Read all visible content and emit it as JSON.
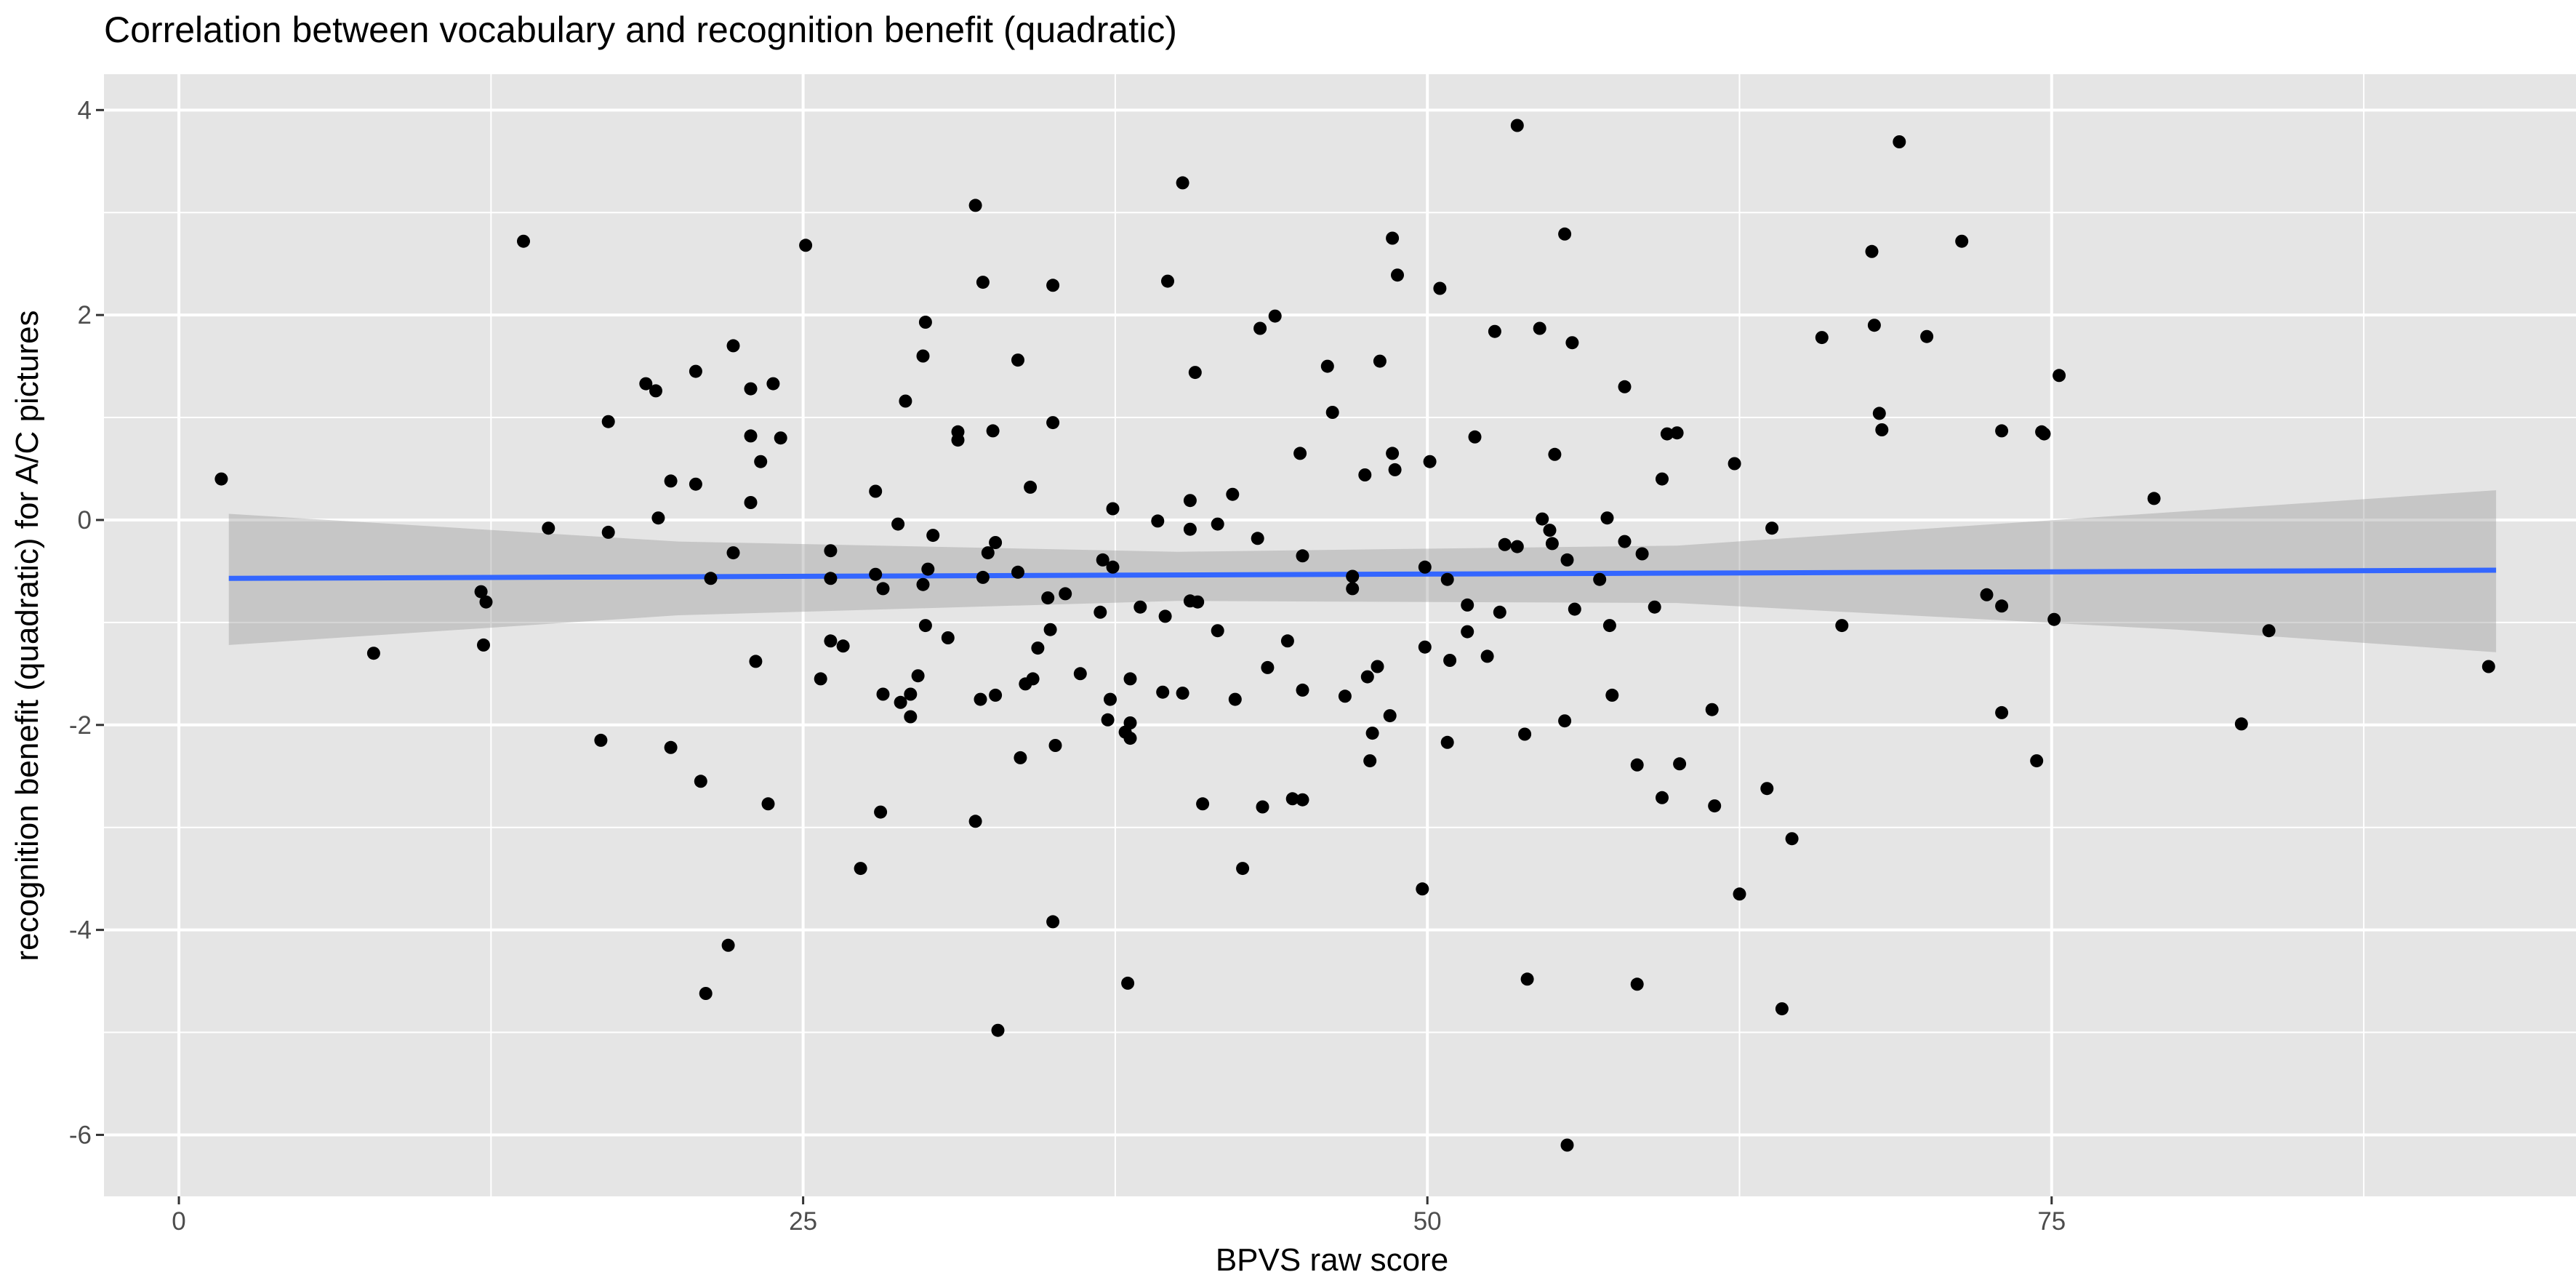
{
  "chart_data": {
    "type": "scatter",
    "title": "Correlation between vocabulary and recognition benefit (quadratic)",
    "xlabel": "BPVS raw score",
    "ylabel": "recognition benefit (quadratic) for A/C pictures",
    "xlim": [
      -3,
      96
    ],
    "ylim": [
      -6.6,
      4.35
    ],
    "x_ticks": [
      0,
      25,
      50,
      75
    ],
    "y_ticks": [
      -6,
      -4,
      -2,
      0,
      2,
      4
    ],
    "grid": true,
    "panel_background": "#e5e5e5",
    "grid_color": "#ffffff",
    "point_color": "#000000",
    "fit": {
      "method": "linear",
      "x_range": [
        2,
        92.8
      ],
      "line": [
        [
          2,
          -0.57
        ],
        [
          92.8,
          -0.49
        ]
      ],
      "ci_lower": [
        [
          2,
          -1.22
        ],
        [
          20,
          -0.93
        ],
        [
          40,
          -0.79
        ],
        [
          60,
          -0.81
        ],
        [
          80,
          -1.07
        ],
        [
          92.8,
          -1.29
        ]
      ],
      "ci_upper": [
        [
          2,
          0.06
        ],
        [
          20,
          -0.21
        ],
        [
          40,
          -0.31
        ],
        [
          60,
          -0.25
        ],
        [
          80,
          0.08
        ],
        [
          92.8,
          0.29
        ]
      ],
      "line_color": "#3366ff",
      "band_color": "#999999"
    },
    "points": [
      [
        1.7,
        0.4
      ],
      [
        7.8,
        -1.3
      ],
      [
        12.1,
        -0.7
      ],
      [
        12.3,
        -0.8
      ],
      [
        12.2,
        -1.22
      ],
      [
        13.8,
        2.72
      ],
      [
        14.8,
        -0.08
      ],
      [
        16.9,
        -2.15
      ],
      [
        17.2,
        0.96
      ],
      [
        17.2,
        -0.12
      ],
      [
        18.7,
        1.33
      ],
      [
        19.1,
        1.26
      ],
      [
        19.2,
        0.02
      ],
      [
        19.7,
        0.38
      ],
      [
        19.7,
        -2.22
      ],
      [
        20.7,
        1.45
      ],
      [
        20.7,
        0.35
      ],
      [
        20.9,
        -2.55
      ],
      [
        21.1,
        -4.62
      ],
      [
        21.3,
        -0.57
      ],
      [
        22.0,
        -4.15
      ],
      [
        22.2,
        1.7
      ],
      [
        22.2,
        -0.32
      ],
      [
        22.9,
        1.28
      ],
      [
        22.9,
        0.82
      ],
      [
        22.9,
        0.17
      ],
      [
        23.1,
        -1.38
      ],
      [
        23.3,
        0.57
      ],
      [
        23.6,
        -2.77
      ],
      [
        23.8,
        1.33
      ],
      [
        24.1,
        0.8
      ],
      [
        25.1,
        2.68
      ],
      [
        25.7,
        -1.55
      ],
      [
        26.1,
        -0.3
      ],
      [
        26.1,
        -0.57
      ],
      [
        26.1,
        -1.18
      ],
      [
        26.6,
        -1.23
      ],
      [
        27.3,
        -3.4
      ],
      [
        27.9,
        0.28
      ],
      [
        27.9,
        -0.53
      ],
      [
        28.1,
        -2.85
      ],
      [
        28.2,
        -1.7
      ],
      [
        28.2,
        -0.67
      ],
      [
        28.8,
        -0.04
      ],
      [
        28.9,
        -1.78
      ],
      [
        29.1,
        1.16
      ],
      [
        29.3,
        -1.7
      ],
      [
        29.3,
        -1.92
      ],
      [
        29.6,
        -1.52
      ],
      [
        29.8,
        1.6
      ],
      [
        29.8,
        -0.63
      ],
      [
        29.9,
        1.93
      ],
      [
        29.9,
        -1.03
      ],
      [
        30.0,
        -0.48
      ],
      [
        30.2,
        -0.15
      ],
      [
        30.8,
        -1.15
      ],
      [
        31.2,
        0.86
      ],
      [
        31.2,
        0.78
      ],
      [
        31.9,
        3.07
      ],
      [
        31.9,
        -2.94
      ],
      [
        32.1,
        -1.75
      ],
      [
        32.2,
        2.32
      ],
      [
        32.2,
        -0.56
      ],
      [
        32.4,
        -0.32
      ],
      [
        32.6,
        0.87
      ],
      [
        32.7,
        -1.71
      ],
      [
        32.7,
        -0.22
      ],
      [
        32.8,
        -4.98
      ],
      [
        33.6,
        1.56
      ],
      [
        33.6,
        -0.51
      ],
      [
        33.7,
        -2.32
      ],
      [
        33.9,
        -1.6
      ],
      [
        34.1,
        0.32
      ],
      [
        34.2,
        -1.55
      ],
      [
        34.4,
        -1.25
      ],
      [
        34.8,
        -0.76
      ],
      [
        34.9,
        -1.07
      ],
      [
        35.0,
        2.29
      ],
      [
        35.0,
        0.95
      ],
      [
        35.0,
        -3.92
      ],
      [
        35.1,
        -2.2
      ],
      [
        35.5,
        -0.72
      ],
      [
        36.1,
        -1.5
      ],
      [
        36.9,
        -0.9
      ],
      [
        37.0,
        -0.39
      ],
      [
        37.2,
        -1.95
      ],
      [
        37.3,
        -1.75
      ],
      [
        37.4,
        0.11
      ],
      [
        37.4,
        -0.46
      ],
      [
        37.9,
        -2.07
      ],
      [
        38.0,
        -4.52
      ],
      [
        38.1,
        -1.55
      ],
      [
        38.1,
        -2.13
      ],
      [
        38.1,
        -1.98
      ],
      [
        38.5,
        -0.85
      ],
      [
        39.2,
        -0.01
      ],
      [
        39.4,
        -1.68
      ],
      [
        39.5,
        -0.94
      ],
      [
        39.6,
        2.33
      ],
      [
        40.2,
        3.29
      ],
      [
        40.2,
        -1.69
      ],
      [
        40.5,
        0.19
      ],
      [
        40.5,
        -0.09
      ],
      [
        40.5,
        -0.79
      ],
      [
        40.7,
        1.44
      ],
      [
        40.8,
        -0.8
      ],
      [
        41.0,
        -2.77
      ],
      [
        41.6,
        -1.08
      ],
      [
        41.6,
        -0.04
      ],
      [
        42.2,
        0.25
      ],
      [
        42.3,
        -1.75
      ],
      [
        42.6,
        -3.4
      ],
      [
        43.2,
        -0.18
      ],
      [
        43.3,
        1.87
      ],
      [
        43.4,
        -2.8
      ],
      [
        43.6,
        -1.44
      ],
      [
        43.9,
        1.99
      ],
      [
        44.4,
        -1.18
      ],
      [
        44.6,
        -2.72
      ],
      [
        44.9,
        0.65
      ],
      [
        45.0,
        -0.35
      ],
      [
        45.0,
        -2.73
      ],
      [
        45.0,
        -1.66
      ],
      [
        46.0,
        1.5
      ],
      [
        46.2,
        1.05
      ],
      [
        46.7,
        -1.72
      ],
      [
        47.0,
        -0.55
      ],
      [
        47.0,
        -0.67
      ],
      [
        47.5,
        0.44
      ],
      [
        47.6,
        -1.53
      ],
      [
        47.7,
        -2.35
      ],
      [
        47.8,
        -2.08
      ],
      [
        48.0,
        -1.43
      ],
      [
        48.1,
        1.55
      ],
      [
        48.5,
        -1.91
      ],
      [
        48.6,
        2.75
      ],
      [
        48.6,
        0.65
      ],
      [
        48.7,
        0.49
      ],
      [
        48.8,
        2.39
      ],
      [
        49.8,
        -3.6
      ],
      [
        49.9,
        -0.46
      ],
      [
        49.9,
        -1.24
      ],
      [
        50.1,
        0.57
      ],
      [
        50.5,
        2.26
      ],
      [
        50.8,
        -0.58
      ],
      [
        50.8,
        -2.17
      ],
      [
        50.9,
        -1.37
      ],
      [
        51.6,
        -1.09
      ],
      [
        51.6,
        -0.83
      ],
      [
        51.9,
        0.81
      ],
      [
        52.4,
        -1.33
      ],
      [
        52.7,
        1.84
      ],
      [
        52.9,
        -0.9
      ],
      [
        53.1,
        -0.24
      ],
      [
        53.6,
        3.85
      ],
      [
        53.6,
        -0.26
      ],
      [
        53.9,
        -2.09
      ],
      [
        54.0,
        -4.48
      ],
      [
        54.5,
        1.87
      ],
      [
        54.6,
        0.01
      ],
      [
        54.9,
        -0.1
      ],
      [
        55.0,
        -0.23
      ],
      [
        55.1,
        0.64
      ],
      [
        55.5,
        2.79
      ],
      [
        55.5,
        -1.96
      ],
      [
        55.6,
        -0.39
      ],
      [
        55.6,
        -6.1
      ],
      [
        55.8,
        1.73
      ],
      [
        55.9,
        -0.87
      ],
      [
        56.9,
        -0.58
      ],
      [
        57.2,
        0.02
      ],
      [
        57.3,
        -1.03
      ],
      [
        57.4,
        -1.71
      ],
      [
        57.9,
        1.3
      ],
      [
        57.9,
        -0.21
      ],
      [
        58.4,
        -2.39
      ],
      [
        58.4,
        -4.53
      ],
      [
        58.6,
        -0.33
      ],
      [
        59.1,
        -0.85
      ],
      [
        59.4,
        0.4
      ],
      [
        59.4,
        -2.71
      ],
      [
        59.6,
        0.84
      ],
      [
        60.0,
        0.85
      ],
      [
        60.1,
        -2.38
      ],
      [
        61.4,
        -1.85
      ],
      [
        61.5,
        -2.79
      ],
      [
        62.3,
        0.55
      ],
      [
        62.5,
        -3.65
      ],
      [
        63.6,
        -2.62
      ],
      [
        63.8,
        -0.08
      ],
      [
        64.2,
        -4.77
      ],
      [
        64.6,
        -3.11
      ],
      [
        65.8,
        1.78
      ],
      [
        66.6,
        -1.03
      ],
      [
        67.8,
        2.62
      ],
      [
        67.9,
        1.9
      ],
      [
        68.1,
        1.04
      ],
      [
        68.2,
        0.88
      ],
      [
        68.9,
        3.69
      ],
      [
        70.0,
        1.79
      ],
      [
        71.4,
        2.72
      ],
      [
        72.4,
        -0.73
      ],
      [
        73.0,
        -0.84
      ],
      [
        73.0,
        -1.88
      ],
      [
        73.0,
        0.87
      ],
      [
        74.4,
        -2.35
      ],
      [
        74.6,
        0.86
      ],
      [
        74.7,
        0.84
      ],
      [
        75.1,
        -0.97
      ],
      [
        75.3,
        1.41
      ],
      [
        79.1,
        0.21
      ],
      [
        82.6,
        -1.99
      ],
      [
        83.7,
        -1.08
      ],
      [
        92.5,
        -1.43
      ]
    ]
  }
}
